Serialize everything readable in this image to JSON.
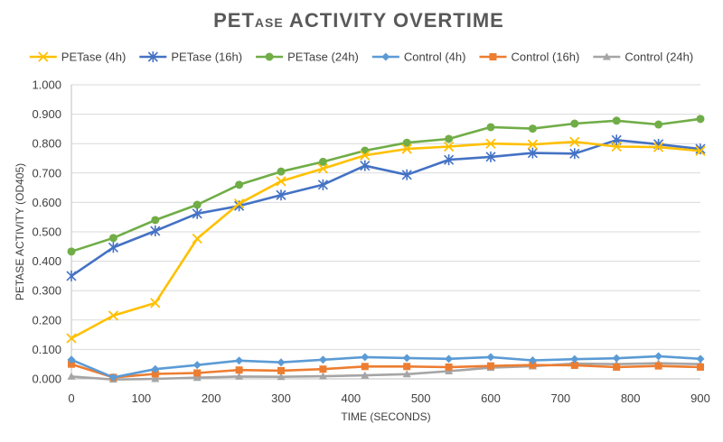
{
  "chart_data": {
    "type": "line",
    "title": {
      "prefix": "PET",
      "small": "ASE",
      "suffix": " ACTIVITY OVERTIME"
    },
    "xlabel": "TIME (SECONDS)",
    "ylabel": "PETASE ACTIVITY  (OD405)",
    "xlim": [
      0,
      900
    ],
    "ylim": [
      0,
      1
    ],
    "x_ticks": [
      "0",
      "100",
      "200",
      "300",
      "400",
      "500",
      "600",
      "700",
      "800",
      "900"
    ],
    "y_ticks": [
      "0.000",
      "0.100",
      "0.200",
      "0.300",
      "0.400",
      "0.500",
      "0.600",
      "0.700",
      "0.800",
      "0.900",
      "1.000"
    ],
    "grid": "horizontal",
    "legend_position": "top",
    "x": [
      0,
      60,
      120,
      180,
      240,
      300,
      360,
      420,
      480,
      540,
      600,
      660,
      720,
      780,
      840,
      900
    ],
    "series": [
      {
        "name": "PETase (4h)",
        "color": "#FFC000",
        "marker": "x",
        "values": [
          0.138,
          0.215,
          0.258,
          0.477,
          0.596,
          0.672,
          0.715,
          0.76,
          0.782,
          0.79,
          0.8,
          0.797,
          0.806,
          0.79,
          0.788,
          0.775
        ]
      },
      {
        "name": "PETase (16h)",
        "color": "#4472C4",
        "marker": "star",
        "values": [
          0.35,
          0.447,
          0.503,
          0.562,
          0.588,
          0.625,
          0.66,
          0.725,
          0.694,
          0.745,
          0.755,
          0.768,
          0.766,
          0.812,
          0.798,
          0.782
        ]
      },
      {
        "name": "PETase (24h)",
        "color": "#70AD47",
        "marker": "circle",
        "values": [
          0.433,
          0.479,
          0.54,
          0.592,
          0.66,
          0.705,
          0.738,
          0.776,
          0.803,
          0.816,
          0.856,
          0.851,
          0.868,
          0.878,
          0.865,
          0.884
        ]
      },
      {
        "name": "Control (4h)",
        "color": "#5B9BD5",
        "marker": "diamond",
        "values": [
          0.065,
          0.005,
          0.033,
          0.047,
          0.062,
          0.056,
          0.065,
          0.074,
          0.071,
          0.068,
          0.074,
          0.063,
          0.067,
          0.07,
          0.077,
          0.068
        ]
      },
      {
        "name": "Control (16h)",
        "color": "#ED7D31",
        "marker": "square",
        "values": [
          0.05,
          0.005,
          0.017,
          0.02,
          0.03,
          0.028,
          0.033,
          0.042,
          0.042,
          0.04,
          0.044,
          0.047,
          0.046,
          0.04,
          0.044,
          0.04
        ]
      },
      {
        "name": "Control (24h)",
        "color": "#A5A5A5",
        "marker": "triangle",
        "values": [
          0.008,
          -0.002,
          0.0,
          0.004,
          0.008,
          0.007,
          0.009,
          0.012,
          0.016,
          0.026,
          0.038,
          0.043,
          0.052,
          0.05,
          0.053,
          0.05
        ]
      }
    ]
  }
}
